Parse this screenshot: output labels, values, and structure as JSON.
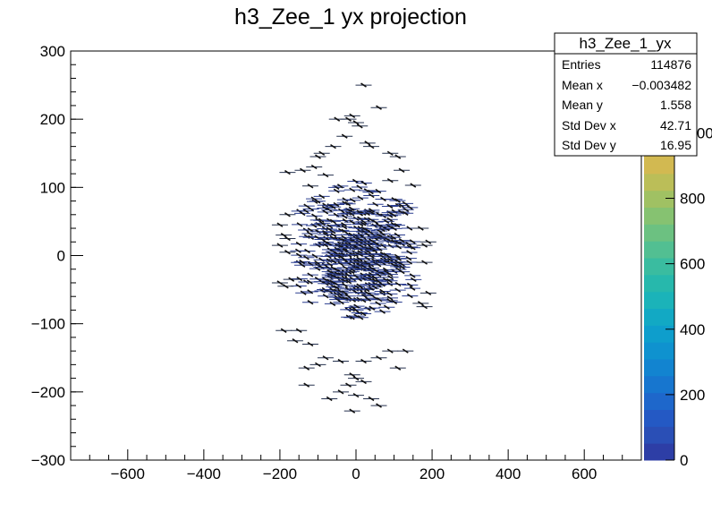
{
  "chart_data": {
    "type": "scatter",
    "title": "h3_Zee_1 yx projection",
    "xlim": [
      -750,
      750
    ],
    "ylim": [
      -300,
      300
    ],
    "xticks": [
      -600,
      -400,
      -200,
      0,
      200,
      400,
      600
    ],
    "yticks": [
      -300,
      -200,
      -100,
      0,
      100,
      200,
      300
    ],
    "xtick_labels": [
      "−600",
      "−400",
      "−200",
      "0",
      "200",
      "400",
      "600"
    ],
    "ytick_labels": [
      "−300",
      "−200",
      "−100",
      "0",
      "100",
      "200",
      "300"
    ],
    "colorbar": {
      "ticks": [
        0,
        200,
        400,
        600,
        800,
        1000
      ],
      "tick_labels": [
        "0",
        "200",
        "400",
        "600",
        "800",
        "1000"
      ],
      "max": 1250,
      "colors": [
        "#2d3ea6",
        "#2a4fb6",
        "#2459c4",
        "#1e67cb",
        "#1776cf",
        "#1284d0",
        "#0f92cf",
        "#0e9ecc",
        "#12a9c4",
        "#1bb3b9",
        "#27b8ac",
        "#3abca0",
        "#52bf92",
        "#6cc181",
        "#86c271",
        "#a0c163",
        "#bbbe58",
        "#d2b951"
      ]
    },
    "stats": {
      "name": "h3_Zee_1_yx",
      "rows": [
        {
          "label": "Entries",
          "value": "114876"
        },
        {
          "label": "Mean x",
          "value": "−0.003482"
        },
        {
          "label": "Mean y",
          "value": "1.558"
        },
        {
          "label": "Std Dev x",
          "value": "42.71"
        },
        {
          "label": "Std Dev y",
          "value": "16.95"
        }
      ]
    },
    "core": {
      "x_range": [
        -150,
        150
      ],
      "y_range": [
        -90,
        110
      ],
      "x_step": 10,
      "y_step": 5
    },
    "points": [
      [
        20,
        250
      ],
      [
        60,
        217
      ],
      [
        -50,
        200
      ],
      [
        -10,
        205
      ],
      [
        -20,
        200
      ],
      [
        0,
        195
      ],
      [
        10,
        190
      ],
      [
        -30,
        175
      ],
      [
        30,
        165
      ],
      [
        -60,
        160
      ],
      [
        40,
        160
      ],
      [
        -90,
        150
      ],
      [
        90,
        150
      ],
      [
        -140,
        125
      ],
      [
        -110,
        130
      ],
      [
        -100,
        145
      ],
      [
        110,
        145
      ],
      [
        120,
        125
      ],
      [
        -80,
        118
      ],
      [
        -120,
        102
      ],
      [
        90,
        110
      ],
      [
        150,
        103
      ],
      [
        -180,
        122
      ],
      [
        -180,
        60
      ],
      [
        -200,
        45
      ],
      [
        -180,
        25
      ],
      [
        -200,
        15
      ],
      [
        -180,
        5
      ],
      [
        -190,
        30
      ],
      [
        -200,
        -40
      ],
      [
        -185,
        -45
      ],
      [
        -170,
        -35
      ],
      [
        -190,
        -110
      ],
      [
        -150,
        -110
      ],
      [
        170,
        40
      ],
      [
        180,
        15
      ],
      [
        190,
        20
      ],
      [
        180,
        -10
      ],
      [
        190,
        -55
      ],
      [
        180,
        -75
      ],
      [
        170,
        -70
      ],
      [
        -40,
        -155
      ],
      [
        -80,
        -150
      ],
      [
        -100,
        -160
      ],
      [
        -130,
        -165
      ],
      [
        20,
        -155
      ],
      [
        60,
        -150
      ],
      [
        110,
        -165
      ],
      [
        -10,
        -175
      ],
      [
        0,
        -180
      ],
      [
        -20,
        -190
      ],
      [
        20,
        -185
      ],
      [
        0,
        -205
      ],
      [
        -40,
        -200
      ],
      [
        -70,
        -210
      ],
      [
        60,
        -220
      ],
      [
        -10,
        -228
      ],
      [
        40,
        -210
      ],
      [
        90,
        -140
      ],
      [
        -120,
        -130
      ],
      [
        -130,
        -190
      ],
      [
        -160,
        -125
      ],
      [
        130,
        -140
      ]
    ]
  }
}
